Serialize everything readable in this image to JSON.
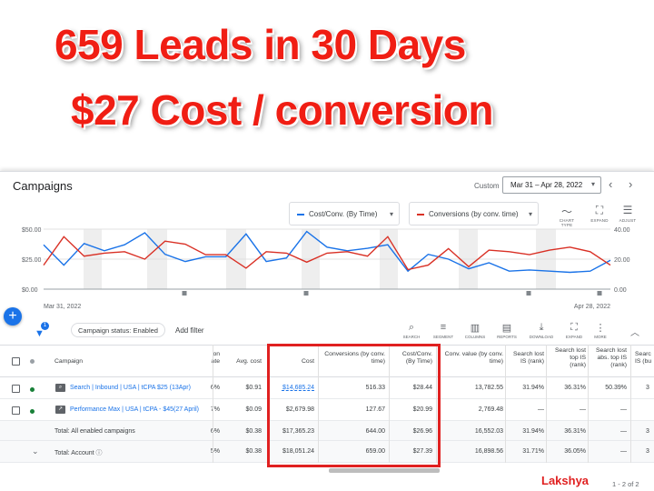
{
  "headline": {
    "line1": "659 Leads in 30 Days",
    "line2": "$27 Cost / conversion"
  },
  "header": {
    "title": "Campaigns",
    "custom_label": "Custom",
    "date_range": "Mar 31 – Apr 28, 2022"
  },
  "chart": {
    "metric1": "Cost/Conv. (By Time)",
    "metric2": "Conversions (by conv. time)",
    "tools": [
      {
        "label": "CHART TYPE",
        "icon": "line-chart-icon"
      },
      {
        "label": "EXPAND",
        "icon": "expand-icon"
      },
      {
        "label": "ADJUST",
        "icon": "adjust-icon"
      }
    ],
    "start_date": "Mar 31, 2022",
    "end_date": "Apr 28, 2022",
    "left_ticks": [
      "$50.00",
      "$25.00",
      "$0.00"
    ],
    "right_ticks": [
      "40.00",
      "20.00",
      "0.00"
    ],
    "colors": {
      "cost_per_conv": "#1a73e8",
      "conversions": "#d93025"
    }
  },
  "chart_data": {
    "type": "line",
    "xlabel": "",
    "ylabel": "",
    "x_range": [
      "Mar 31, 2022",
      "Apr 28, 2022"
    ],
    "ylim_left": [
      0,
      50
    ],
    "ylim_right": [
      0,
      40
    ],
    "series": [
      {
        "name": "Cost/Conv. (By Time)",
        "axis": "left",
        "values": [
          37,
          20,
          38,
          32,
          37,
          47,
          29,
          23,
          27,
          27,
          46,
          23,
          26,
          48,
          35,
          32,
          34,
          37,
          15,
          29,
          25,
          17,
          22,
          15,
          16,
          15,
          14,
          15,
          24
        ]
      },
      {
        "name": "Conversions (by conv. time)",
        "axis": "right",
        "values": [
          16,
          35,
          22,
          24,
          25,
          20,
          32,
          30,
          23,
          23,
          14,
          25,
          24,
          18,
          24,
          25,
          22,
          35,
          13,
          16,
          27,
          15,
          26,
          25,
          23,
          26,
          28,
          25,
          16
        ]
      }
    ]
  },
  "filterbar": {
    "filter_badge": "1",
    "chip": "Campaign status: Enabled",
    "add_filter": "Add filter",
    "tools": [
      {
        "label": "SEARCH",
        "icon": "search-icon"
      },
      {
        "label": "SEGMENT",
        "icon": "segment-icon"
      },
      {
        "label": "COLUMNS",
        "icon": "columns-icon"
      },
      {
        "label": "REPORTS",
        "icon": "reports-icon"
      },
      {
        "label": "DOWNLOAD",
        "icon": "download-icon"
      },
      {
        "label": "EXPAND",
        "icon": "expand-icon"
      },
      {
        "label": "MORE",
        "icon": "more-icon"
      }
    ]
  },
  "table": {
    "headers": {
      "campaign": "Campaign",
      "partial_a": "on",
      "partial_b": "ate",
      "avg_cost": "Avg. cost",
      "cost": "Cost",
      "conversions_1": "Conversions (by conv.",
      "conversions_2": "time)",
      "cost_conv_1": "Cost/Conv.",
      "cost_conv_2": "(By Time)",
      "conv_value_1": "Conv. value (by conv.",
      "conv_value_2": "time)",
      "search_lost_rank_1": "Search lost",
      "search_lost_rank_2": "IS (rank)",
      "search_lost_top_1": "Search lost",
      "search_lost_top_2": "top IS",
      "search_lost_top_3": "(rank)",
      "search_lost_abs_1": "Search lost",
      "search_lost_abs_2": "abs. top IS",
      "search_lost_abs_3": "(rank)",
      "search_partial_1": "Searc",
      "search_partial_2": "IS (bu"
    },
    "rows": [
      {
        "status_color": "#188038",
        "icon": "search-campaign-icon",
        "name": "Search | Inbound | USA | tCPA $25 (13Apr)",
        "partial": "6%",
        "avg_cost": "$0.91",
        "cost": "$14,685.24",
        "conversions": "516.33",
        "cost_conv": "$28.44",
        "conv_value": "13,782.55",
        "lost_rank": "31.94%",
        "lost_top": "36.31%",
        "lost_abs": "50.39%",
        "last": "3"
      },
      {
        "status_color": "#188038",
        "icon": "performance-max-icon",
        "name": "Performance Max | USA | tCPA - $45(27 April)",
        "partial": "7%",
        "avg_cost": "$0.09",
        "cost": "$2,679.98",
        "conversions": "127.67",
        "cost_conv": "$20.99",
        "conv_value": "2,769.48",
        "lost_rank": "—",
        "lost_top": "—",
        "lost_abs": "—",
        "last": ""
      }
    ],
    "totals": [
      {
        "name": "Total: All enabled campaigns",
        "partial": "6%",
        "avg_cost": "$0.38",
        "cost": "$17,365.23",
        "conversions": "644.00",
        "cost_conv": "$26.96",
        "conv_value": "16,552.03",
        "lost_rank": "31.94%",
        "lost_top": "36.31%",
        "lost_abs": "—",
        "last": "3"
      },
      {
        "name": "Total: Account",
        "partial": "5%",
        "avg_cost": "$0.38",
        "cost": "$18,051.24",
        "conversions": "659.00",
        "cost_conv": "$27.39",
        "conv_value": "16,898.56",
        "lost_rank": "31.71%",
        "lost_top": "36.05%",
        "lost_abs": "—",
        "last": "3"
      }
    ]
  },
  "footer": {
    "watermark": "Lakshya",
    "pager": "1 - 2 of 2"
  }
}
